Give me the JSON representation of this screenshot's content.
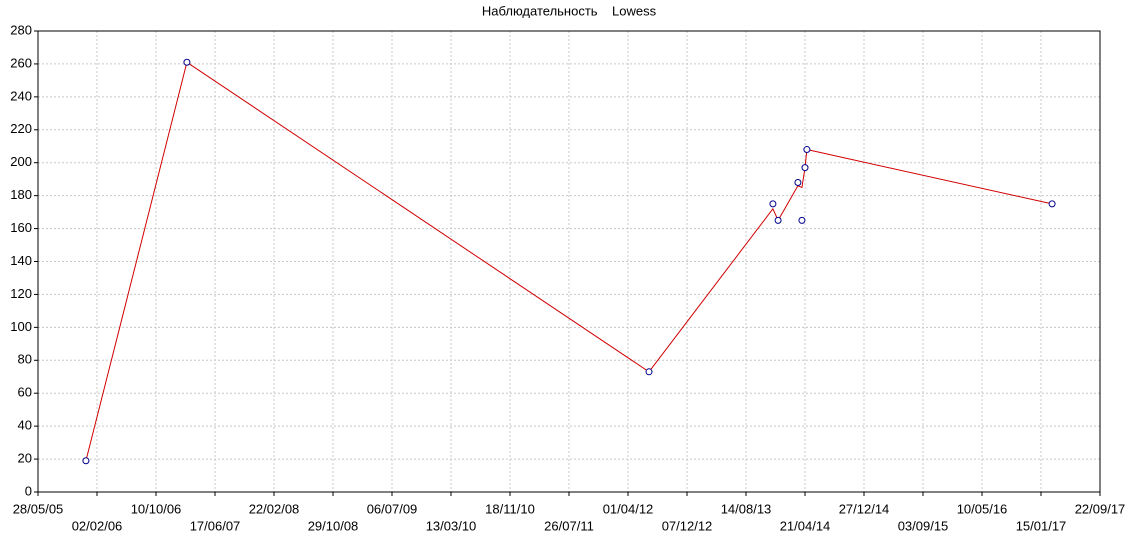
{
  "chart_data": {
    "type": "scatter_lowess",
    "title": "Наблюдательность    Lowess",
    "x": [
      "17/12/05",
      "18/02/07",
      "29/06/12",
      "06/12/13",
      "28/12/13",
      "22/03/14",
      "08/04/14",
      "21/04/14",
      "29/04/14",
      "03/03/17"
    ],
    "series": [
      {
        "name": "Наблюдательность",
        "color": "#00008b",
        "values": [
          19,
          261,
          73,
          175,
          165,
          188,
          165,
          197,
          208,
          175
        ]
      },
      {
        "name": "Lowess",
        "color": "#d00000",
        "values": [
          19,
          261,
          73,
          172,
          165,
          186,
          185,
          197,
          208,
          175
        ]
      }
    ],
    "xlim": [
      "28/05/05",
      "22/09/17"
    ],
    "xticks": [
      "28/05/05",
      "02/02/06",
      "10/10/06",
      "17/06/07",
      "22/02/08",
      "29/10/08",
      "06/07/09",
      "13/03/10",
      "18/11/10",
      "26/07/11",
      "01/04/12",
      "07/12/12",
      "14/08/13",
      "21/04/14",
      "27/12/14",
      "03/09/15",
      "10/05/16",
      "15/01/17",
      "22/09/17"
    ],
    "ylim": [
      0,
      280
    ],
    "yticks": [
      0,
      20,
      40,
      60,
      80,
      100,
      120,
      140,
      160,
      180,
      200,
      220,
      240,
      260,
      280
    ],
    "grid": true
  }
}
